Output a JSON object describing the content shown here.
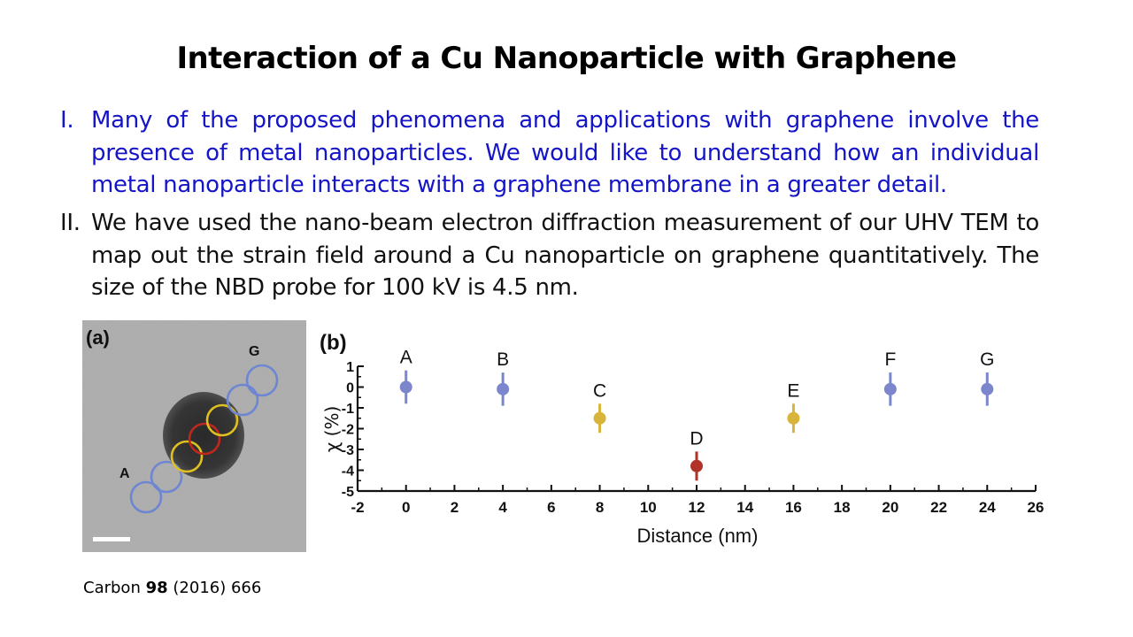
{
  "title": "Interaction of a Cu Nanoparticle with Graphene",
  "items": [
    {
      "marker": "I.",
      "text": "Many of the proposed phenomena and applications with graphene involve the presence of metal nanoparticles. We would like to understand how an individual metal nanoparticle interacts with a graphene membrane in a greater detail."
    },
    {
      "marker": "II.",
      "text": "We have used the nano-beam electron diffraction measurement of our UHV TEM to map out the strain field around a Cu nanoparticle on graphene quantitatively. The size of the NBD probe for 100 kV is 4.5 nm."
    }
  ],
  "figure_a": {
    "panel_label": "(a)",
    "label_a": "A",
    "label_g": "G"
  },
  "chart_data": {
    "type": "scatter",
    "panel_label": "(b)",
    "xlabel": "Distance (nm)",
    "ylabel": "χ (%)",
    "xlim": [
      -2,
      26
    ],
    "ylim": [
      -5,
      1
    ],
    "xticks": [
      "-2",
      "0",
      "2",
      "4",
      "6",
      "8",
      "10",
      "12",
      "14",
      "16",
      "18",
      "20",
      "22",
      "24",
      "26"
    ],
    "yticks": [
      "1",
      "0",
      "-1",
      "-2",
      "-3",
      "-4",
      "-5"
    ],
    "points": [
      {
        "label": "A",
        "x": 0,
        "y": 0,
        "err": 0.8,
        "color": "#7b86cc"
      },
      {
        "label": "B",
        "x": 4,
        "y": -0.1,
        "err": 0.8,
        "color": "#7b86cc"
      },
      {
        "label": "C",
        "x": 8,
        "y": -1.5,
        "err": 0.7,
        "color": "#d9b43a"
      },
      {
        "label": "D",
        "x": 12,
        "y": -3.8,
        "err": 0.7,
        "color": "#b03228"
      },
      {
        "label": "E",
        "x": 16,
        "y": -1.5,
        "err": 0.7,
        "color": "#d9b43a"
      },
      {
        "label": "F",
        "x": 20,
        "y": -0.1,
        "err": 0.8,
        "color": "#7b86cc"
      },
      {
        "label": "G",
        "x": 24,
        "y": -0.1,
        "err": 0.8,
        "color": "#7b86cc"
      }
    ]
  },
  "citation": {
    "journal": "Carbon",
    "volume": "98",
    "rest": "(2016) 666"
  }
}
